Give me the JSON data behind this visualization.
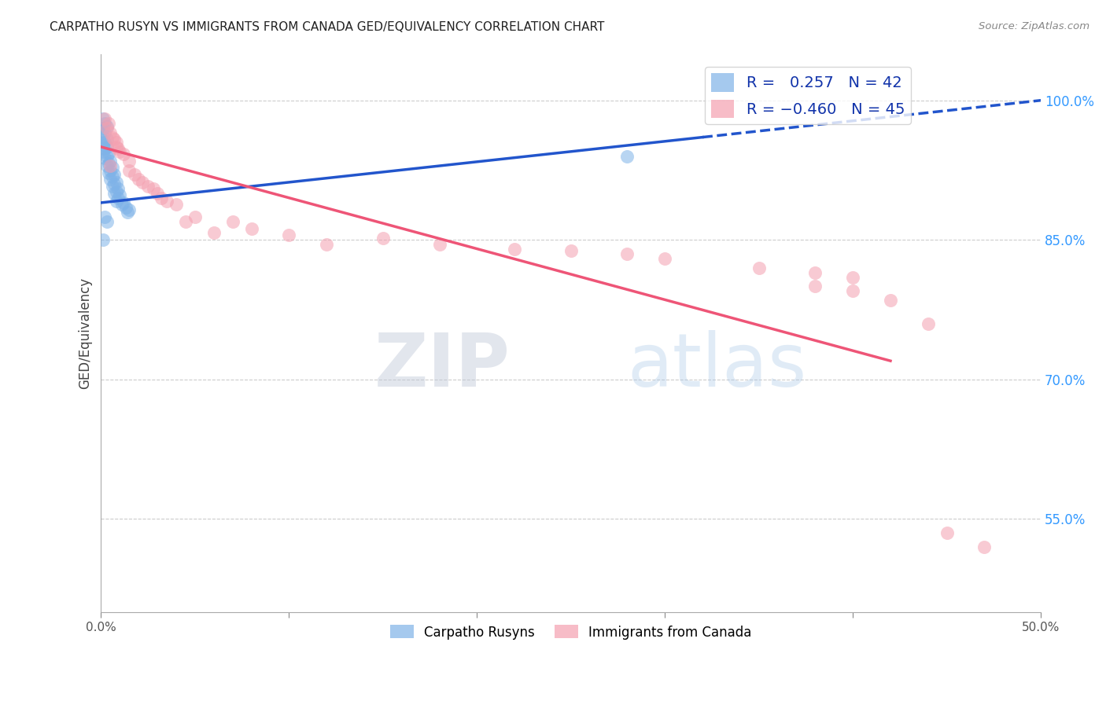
{
  "title": "CARPATHO RUSYN VS IMMIGRANTS FROM CANADA GED/EQUIVALENCY CORRELATION CHART",
  "source": "Source: ZipAtlas.com",
  "ylabel": "GED/Equivalency",
  "blue_R": 0.257,
  "blue_N": 42,
  "pink_R": -0.46,
  "pink_N": 45,
  "blue_label": "Carpatho Rusyns",
  "pink_label": "Immigrants from Canada",
  "blue_color": "#7fb3e8",
  "pink_color": "#f4a0b0",
  "blue_line_color": "#2255cc",
  "pink_line_color": "#ee5577",
  "blue_dots": [
    [
      0.001,
      0.98
    ],
    [
      0.002,
      0.975
    ],
    [
      0.001,
      0.97
    ],
    [
      0.003,
      0.972
    ],
    [
      0.002,
      0.965
    ],
    [
      0.001,
      0.96
    ],
    [
      0.003,
      0.958
    ],
    [
      0.002,
      0.955
    ],
    [
      0.001,
      0.952
    ],
    [
      0.003,
      0.95
    ],
    [
      0.002,
      0.948
    ],
    [
      0.001,
      0.945
    ],
    [
      0.004,
      0.943
    ],
    [
      0.003,
      0.94
    ],
    [
      0.002,
      0.938
    ],
    [
      0.005,
      0.935
    ],
    [
      0.004,
      0.932
    ],
    [
      0.003,
      0.93
    ],
    [
      0.006,
      0.928
    ],
    [
      0.005,
      0.925
    ],
    [
      0.004,
      0.922
    ],
    [
      0.007,
      0.92
    ],
    [
      0.006,
      0.918
    ],
    [
      0.005,
      0.915
    ],
    [
      0.008,
      0.912
    ],
    [
      0.007,
      0.91
    ],
    [
      0.006,
      0.908
    ],
    [
      0.009,
      0.905
    ],
    [
      0.008,
      0.902
    ],
    [
      0.007,
      0.9
    ],
    [
      0.01,
      0.898
    ],
    [
      0.009,
      0.895
    ],
    [
      0.008,
      0.892
    ],
    [
      0.012,
      0.89
    ],
    [
      0.011,
      0.888
    ],
    [
      0.013,
      0.885
    ],
    [
      0.015,
      0.882
    ],
    [
      0.014,
      0.88
    ],
    [
      0.002,
      0.875
    ],
    [
      0.003,
      0.87
    ],
    [
      0.28,
      0.94
    ],
    [
      0.001,
      0.85
    ]
  ],
  "pink_dots": [
    [
      0.002,
      0.98
    ],
    [
      0.003,
      0.97
    ],
    [
      0.004,
      0.975
    ],
    [
      0.005,
      0.965
    ],
    [
      0.006,
      0.96
    ],
    [
      0.007,
      0.958
    ],
    [
      0.008,
      0.955
    ],
    [
      0.008,
      0.95
    ],
    [
      0.009,
      0.948
    ],
    [
      0.01,
      0.945
    ],
    [
      0.012,
      0.942
    ],
    [
      0.015,
      0.935
    ],
    [
      0.015,
      0.925
    ],
    [
      0.018,
      0.92
    ],
    [
      0.02,
      0.915
    ],
    [
      0.022,
      0.912
    ],
    [
      0.025,
      0.908
    ],
    [
      0.028,
      0.905
    ],
    [
      0.03,
      0.9
    ],
    [
      0.032,
      0.895
    ],
    [
      0.035,
      0.892
    ],
    [
      0.04,
      0.888
    ],
    [
      0.045,
      0.87
    ],
    [
      0.05,
      0.875
    ],
    [
      0.06,
      0.858
    ],
    [
      0.07,
      0.87
    ],
    [
      0.08,
      0.862
    ],
    [
      0.1,
      0.855
    ],
    [
      0.12,
      0.845
    ],
    [
      0.15,
      0.852
    ],
    [
      0.18,
      0.845
    ],
    [
      0.22,
      0.84
    ],
    [
      0.25,
      0.838
    ],
    [
      0.28,
      0.835
    ],
    [
      0.3,
      0.83
    ],
    [
      0.35,
      0.82
    ],
    [
      0.38,
      0.815
    ],
    [
      0.4,
      0.795
    ],
    [
      0.42,
      0.785
    ],
    [
      0.44,
      0.76
    ],
    [
      0.38,
      0.8
    ],
    [
      0.4,
      0.81
    ],
    [
      0.45,
      0.535
    ],
    [
      0.47,
      0.52
    ],
    [
      0.005,
      0.93
    ]
  ],
  "xlim": [
    0.0,
    0.5
  ],
  "ylim": [
    0.45,
    1.05
  ],
  "yticks": [
    0.55,
    0.7,
    0.85,
    1.0
  ],
  "ytick_labels": [
    "55.0%",
    "70.0%",
    "85.0%",
    "100.0%"
  ],
  "xticks": [
    0.0,
    0.1,
    0.2,
    0.3,
    0.4,
    0.5
  ],
  "xtick_labels": [
    "0.0%",
    "",
    "",
    "",
    "",
    "50.0%"
  ],
  "watermark_zip": "ZIP",
  "watermark_atlas": "atlas",
  "background_color": "#ffffff",
  "grid_color": "#cccccc",
  "blue_line_x_start": 0.0,
  "blue_line_x_solid_end": 0.32,
  "blue_line_x_end": 0.5,
  "pink_line_x_start": 0.0,
  "pink_line_x_end": 0.42
}
